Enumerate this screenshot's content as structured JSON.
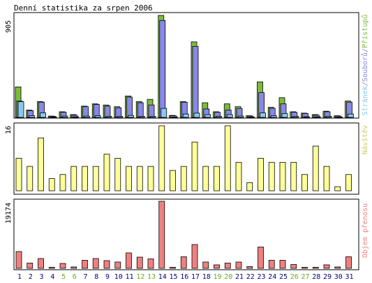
{
  "chart_data": {
    "type": "bar",
    "title": "Denní statistika za srpen 2006",
    "categories": [
      "1",
      "2",
      "3",
      "4",
      "5",
      "6",
      "7",
      "8",
      "9",
      "10",
      "11",
      "12",
      "13",
      "14",
      "15",
      "16",
      "17",
      "18",
      "19",
      "20",
      "21",
      "22",
      "23",
      "24",
      "25",
      "26",
      "27",
      "28",
      "29",
      "30",
      "31"
    ],
    "weekend_days": [
      "5",
      "6",
      "12",
      "13",
      "19",
      "20",
      "26",
      "27"
    ],
    "colors": {
      "pristupy": "#7cbb3c",
      "soubory": "#8888e8",
      "stranky": "#88c8f0",
      "navstevy": "#ffff99",
      "prenos": "#f08080",
      "weekday_label": "#000080",
      "weekend_label": "#66aa22",
      "panel_border": "#000000"
    },
    "panels": [
      {
        "label": "Stránek/Souborů/Přístupů",
        "label_parts": [
          {
            "text": "Stránek",
            "color": "#88c8f0"
          },
          {
            "text": "/",
            "color": "#888888"
          },
          {
            "text": "Souborů",
            "color": "#8888e8"
          },
          {
            "text": "/",
            "color": "#888888"
          },
          {
            "text": "Přístupů",
            "color": "#7cbb3c"
          }
        ],
        "ymax_label": "905",
        "ymax": 905,
        "series": [
          {
            "name": "Přístupů",
            "values": [
              270,
              65,
              140,
              12,
              50,
              25,
              100,
              120,
              110,
              95,
              190,
              140,
              160,
              905,
              18,
              140,
              670,
              130,
              50,
              120,
              95,
              15,
              315,
              90,
              175,
              50,
              38,
              25,
              55,
              15,
              145
            ]
          },
          {
            "name": "Souborů",
            "values": [
              145,
              60,
              135,
              10,
              45,
              20,
              95,
              115,
              100,
              85,
              180,
              130,
              110,
              860,
              15,
              135,
              630,
              75,
              45,
              65,
              80,
              12,
              220,
              80,
              120,
              45,
              35,
              20,
              50,
              12,
              135
            ]
          },
          {
            "name": "Stránek",
            "values": [
              140,
              15,
              40,
              4,
              12,
              6,
              12,
              15,
              10,
              10,
              18,
              10,
              10,
              80,
              4,
              30,
              38,
              25,
              10,
              25,
              12,
              3,
              40,
              15,
              35,
              10,
              6,
              6,
              10,
              3,
              30
            ]
          }
        ]
      },
      {
        "label": "Návštěv",
        "ymax_label": "16",
        "ymax": 16,
        "series": [
          {
            "name": "Návštěv",
            "values": [
              8,
              6,
              13,
              3,
              4,
              6,
              6,
              6,
              9,
              8,
              6,
              6,
              6,
              16,
              5,
              6,
              12,
              6,
              6,
              16,
              7,
              2,
              8,
              7,
              7,
              7,
              4,
              11,
              6,
              1,
              4
            ]
          }
        ]
      },
      {
        "label": "Objem přenosu",
        "ymax_label": "19174",
        "ymax": 19174,
        "series": [
          {
            "name": "Objem přenosu",
            "values": [
              4800,
              1500,
              2800,
              300,
              1400,
              400,
              2300,
              2800,
              2200,
              1800,
              4400,
              3200,
              2700,
              19174,
              300,
              3300,
              6800,
              1800,
              1000,
              1500,
              1800,
              500,
              6100,
              2300,
              2300,
              1100,
              300,
              300,
              1000,
              400,
              3300
            ]
          }
        ]
      }
    ]
  }
}
